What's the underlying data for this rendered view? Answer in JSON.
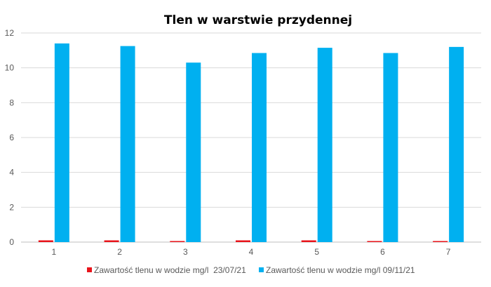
{
  "chart_data": {
    "type": "bar",
    "title": "Tlen w warstwie przydennej",
    "xlabel": "",
    "ylabel": "",
    "categories": [
      "1",
      "2",
      "3",
      "4",
      "5",
      "6",
      "7"
    ],
    "ylim": [
      0,
      12
    ],
    "yticks": [
      0,
      2,
      4,
      6,
      8,
      10,
      12
    ],
    "grid": true,
    "legend_position": "bottom",
    "series": [
      {
        "name": "Zawartość tlenu w wodzie mg/l  23/07/21",
        "color": "#e8141b",
        "values": [
          0.1,
          0.1,
          0.05,
          0.1,
          0.1,
          0.05,
          0.05
        ]
      },
      {
        "name": "Zawartość tlenu w wodzie mg/l 09/11/21",
        "color": "#00b0f0",
        "values": [
          11.4,
          11.25,
          10.3,
          10.85,
          11.15,
          10.85,
          11.2
        ]
      }
    ]
  }
}
